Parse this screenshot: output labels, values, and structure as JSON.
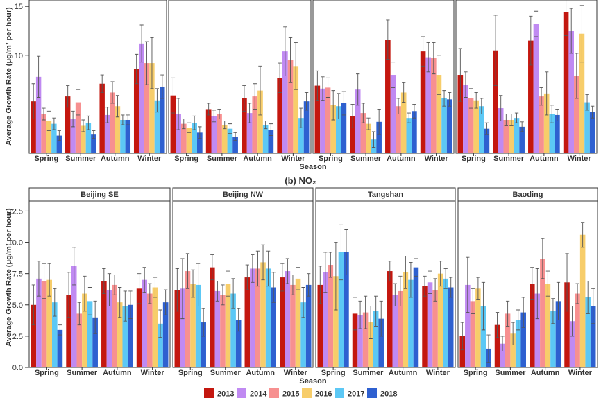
{
  "colors": {
    "2013": "#c4170f",
    "2014": "#c08af2",
    "2015": "#f79090",
    "2016": "#f7cd6a",
    "2017": "#5cc8f5",
    "2018": "#2e60d0"
  },
  "legend": {
    "entries": [
      "2013",
      "2014",
      "2015",
      "2016",
      "2017",
      "2018"
    ]
  },
  "chart_data": [
    {
      "type": "bar",
      "xlabel": "Season",
      "ylabel": "Average Growth Rate (μg/m³ per hour)",
      "ylim": [
        0,
        16.5
      ],
      "yticks": [
        10,
        15
      ],
      "categories": [
        "Spring",
        "Summer",
        "Autumn",
        "Winter"
      ],
      "panels": [
        {
          "name": "",
          "series": [
            {
              "name": "2013",
              "values": [
                5.3,
                5.8,
                7.1,
                8.6
              ],
              "err": [
                1.8,
                1.1,
                0.9,
                1.5
              ]
            },
            {
              "name": "2014",
              "values": [
                7.8,
                3.5,
                3.9,
                11.2
              ],
              "err": [
                2.1,
                0.8,
                0.8,
                1.9
              ]
            },
            {
              "name": "2015",
              "values": [
                4.0,
                5.2,
                6.2,
                9.2
              ],
              "err": [
                0.6,
                1.3,
                1.1,
                2.2
              ]
            },
            {
              "name": "2016",
              "values": [
                3.3,
                2.8,
                4.8,
                9.2
              ],
              "err": [
                1.0,
                0.6,
                1.1,
                2.6
              ]
            },
            {
              "name": "2017",
              "values": [
                3.0,
                3.1,
                3.4,
                5.4
              ],
              "err": [
                0.6,
                0.7,
                0.5,
                1.2
              ]
            },
            {
              "name": "2018",
              "values": [
                1.8,
                1.9,
                3.4,
                6.8
              ],
              "err": [
                0.5,
                0.4,
                0.5,
                1.2
              ]
            }
          ]
        },
        {
          "name": "",
          "series": [
            {
              "name": "2013",
              "values": [
                5.9,
                4.5,
                5.6,
                7.7
              ],
              "err": [
                1.8,
                0.6,
                1.3,
                1.5
              ]
            },
            {
              "name": "2014",
              "values": [
                4.0,
                3.8,
                4.1,
                10.4
              ],
              "err": [
                1.6,
                0.6,
                1.0,
                2.5
              ]
            },
            {
              "name": "2015",
              "values": [
                3.0,
                4.0,
                5.8,
                9.5
              ],
              "err": [
                0.5,
                0.5,
                1.3,
                2.3
              ]
            },
            {
              "name": "2016",
              "values": [
                2.6,
                2.9,
                6.4,
                8.9
              ],
              "err": [
                0.5,
                0.4,
                2.5,
                2.4
              ]
            },
            {
              "name": "2017",
              "values": [
                3.1,
                2.5,
                2.9,
                3.6
              ],
              "err": [
                0.7,
                0.5,
                0.4,
                1.0
              ]
            },
            {
              "name": "2018",
              "values": [
                2.1,
                1.7,
                2.4,
                5.3
              ],
              "err": [
                0.6,
                0.4,
                0.6,
                0.9
              ]
            }
          ]
        },
        {
          "name": "",
          "series": [
            {
              "name": "2013",
              "values": [
                6.9,
                3.8,
                11.6,
                10.4
              ],
              "err": [
                1.5,
                1.2,
                2.0,
                1.5
              ]
            },
            {
              "name": "2014",
              "values": [
                6.6,
                6.5,
                8.0,
                9.8
              ],
              "err": [
                1.2,
                1.6,
                1.3,
                1.5
              ]
            },
            {
              "name": "2015",
              "values": [
                6.7,
                4.1,
                4.8,
                9.7
              ],
              "err": [
                1.0,
                1.0,
                0.8,
                1.6
              ]
            },
            {
              "name": "2016",
              "values": [
                4.9,
                3.0,
                6.2,
                8.0
              ],
              "err": [
                1.5,
                0.6,
                1.0,
                2.0
              ]
            },
            {
              "name": "2017",
              "values": [
                4.8,
                1.4,
                3.6,
                5.6
              ],
              "err": [
                1.3,
                0.8,
                0.5,
                0.8
              ]
            },
            {
              "name": "2018",
              "values": [
                5.1,
                3.2,
                4.3,
                5.5
              ],
              "err": [
                1.2,
                1.3,
                0.7,
                0.7
              ]
            }
          ]
        },
        {
          "name": "",
          "series": [
            {
              "name": "2013",
              "values": [
                8.0,
                10.5,
                11.5,
                14.4
              ],
              "err": [
                2.7,
                3.6,
                2.5,
                2.4
              ]
            },
            {
              "name": "2014",
              "values": [
                7.0,
                4.6,
                13.2,
                12.5
              ],
              "err": [
                1.3,
                1.3,
                1.3,
                2.3
              ]
            },
            {
              "name": "2015",
              "values": [
                5.6,
                3.4,
                5.8,
                7.9
              ],
              "err": [
                1.0,
                0.6,
                0.9,
                2.3
              ]
            },
            {
              "name": "2016",
              "values": [
                5.4,
                3.4,
                6.1,
                12.2
              ],
              "err": [
                0.8,
                0.6,
                2.2,
                2.9
              ]
            },
            {
              "name": "2017",
              "values": [
                4.8,
                3.6,
                4.0,
                5.2
              ],
              "err": [
                0.8,
                0.5,
                0.9,
                0.8
              ]
            },
            {
              "name": "2018",
              "values": [
                2.5,
                2.7,
                3.9,
                4.2
              ],
              "err": [
                0.6,
                0.5,
                0.6,
                0.6
              ]
            }
          ]
        }
      ]
    },
    {
      "type": "bar",
      "title": "(b) NO₂",
      "xlabel": "Season",
      "ylabel": "Average Growth Rate (μg/m³ per hour)",
      "ylim": [
        0,
        13.3
      ],
      "yticks": [
        "0.0",
        "2.5",
        "5.0",
        "7.5",
        "10.0",
        "12.5"
      ],
      "categories": [
        "Spring",
        "Summer",
        "Autumn",
        "Winter"
      ],
      "panels": [
        {
          "name": "Beijing SE",
          "series": [
            {
              "name": "2013",
              "values": [
                5.0,
                5.8,
                6.9,
                6.3
              ],
              "err": [
                1.6,
                1.8,
                1.0,
                1.2
              ]
            },
            {
              "name": "2014",
              "values": [
                7.1,
                8.1,
                6.2,
                7.0
              ],
              "err": [
                1.4,
                1.5,
                1.3,
                1.0
              ]
            },
            {
              "name": "2015",
              "values": [
                6.9,
                4.3,
                6.6,
                5.9
              ],
              "err": [
                1.4,
                0.9,
                0.8,
                0.8
              ]
            },
            {
              "name": "2016",
              "values": [
                7.0,
                5.9,
                5.2,
                6.4
              ],
              "err": [
                1.3,
                1.4,
                1.2,
                0.8
              ]
            },
            {
              "name": "2017",
              "values": [
                5.2,
                5.3,
                4.9,
                3.5
              ],
              "err": [
                1.1,
                1.1,
                1.2,
                1.1
              ]
            },
            {
              "name": "2018",
              "values": [
                3.0,
                4.0,
                5.0,
                5.2
              ],
              "err": [
                0.4,
                1.3,
                1.1,
                1.0
              ]
            }
          ]
        },
        {
          "name": "Beijing NW",
          "series": [
            {
              "name": "2013",
              "values": [
                6.2,
                8.0,
                7.2,
                7.2
              ],
              "err": [
                1.7,
                1.0,
                1.0,
                1.1
              ]
            },
            {
              "name": "2014",
              "values": [
                6.3,
                6.1,
                7.9,
                7.7
              ],
              "err": [
                2.4,
                0.8,
                1.1,
                1.0
              ]
            },
            {
              "name": "2015",
              "values": [
                7.7,
                5.8,
                7.9,
                6.6
              ],
              "err": [
                1.4,
                0.8,
                1.4,
                0.8
              ]
            },
            {
              "name": "2016",
              "values": [
                6.7,
                6.7,
                8.4,
                7.1
              ],
              "err": [
                1.1,
                1.0,
                1.4,
                0.9
              ]
            },
            {
              "name": "2017",
              "values": [
                6.6,
                5.9,
                7.9,
                5.2
              ],
              "err": [
                1.7,
                1.2,
                1.4,
                1.2
              ]
            },
            {
              "name": "2018",
              "values": [
                3.6,
                3.8,
                6.4,
                6.6
              ],
              "err": [
                1.1,
                0.9,
                1.2,
                0.9
              ]
            }
          ]
        },
        {
          "name": "Tangshan",
          "series": [
            {
              "name": "2013",
              "values": [
                6.6,
                4.3,
                7.7,
                6.5
              ],
              "err": [
                1.5,
                1.3,
                0.8,
                0.8
              ]
            },
            {
              "name": "2014",
              "values": [
                7.6,
                4.2,
                5.8,
                6.8
              ],
              "err": [
                1.6,
                1.1,
                0.9,
                0.9
              ]
            },
            {
              "name": "2015",
              "values": [
                8.2,
                4.4,
                6.1,
                6.2
              ],
              "err": [
                1.0,
                1.3,
                1.2,
                0.9
              ]
            },
            {
              "name": "2016",
              "values": [
                7.3,
                3.6,
                7.6,
                7.5
              ],
              "err": [
                2.7,
                1.3,
                1.3,
                1.0
              ]
            },
            {
              "name": "2017",
              "values": [
                9.2,
                4.5,
                7.0,
                7.1
              ],
              "err": [
                2.2,
                1.2,
                1.4,
                0.8
              ]
            },
            {
              "name": "2018",
              "values": [
                9.2,
                3.9,
                8.0,
                6.4
              ],
              "err": [
                1.8,
                1.4,
                0.7,
                0.8
              ]
            }
          ]
        },
        {
          "name": "Baoding",
          "series": [
            {
              "name": "2013",
              "values": [
                2.5,
                3.4,
                6.7,
                6.8
              ],
              "err": [
                1.1,
                1.0,
                1.3,
                2.3
              ]
            },
            {
              "name": "2014",
              "values": [
                6.6,
                1.9,
                5.9,
                3.7
              ],
              "err": [
                2.2,
                0.6,
                2.0,
                1.2
              ]
            },
            {
              "name": "2015",
              "values": [
                5.3,
                4.3,
                8.7,
                5.9
              ],
              "err": [
                1.0,
                1.0,
                1.6,
                0.8
              ]
            },
            {
              "name": "2016",
              "values": [
                6.3,
                2.7,
                6.7,
                10.6
              ],
              "err": [
                0.9,
                0.9,
                1.0,
                1.0
              ]
            },
            {
              "name": "2017",
              "values": [
                4.9,
                3.8,
                4.5,
                5.6
              ],
              "err": [
                1.9,
                0.8,
                1.0,
                1.3
              ]
            },
            {
              "name": "2018",
              "values": [
                1.5,
                4.4,
                5.3,
                4.9
              ],
              "err": [
                1.1,
                1.2,
                1.5,
                1.4
              ]
            }
          ]
        }
      ]
    }
  ]
}
